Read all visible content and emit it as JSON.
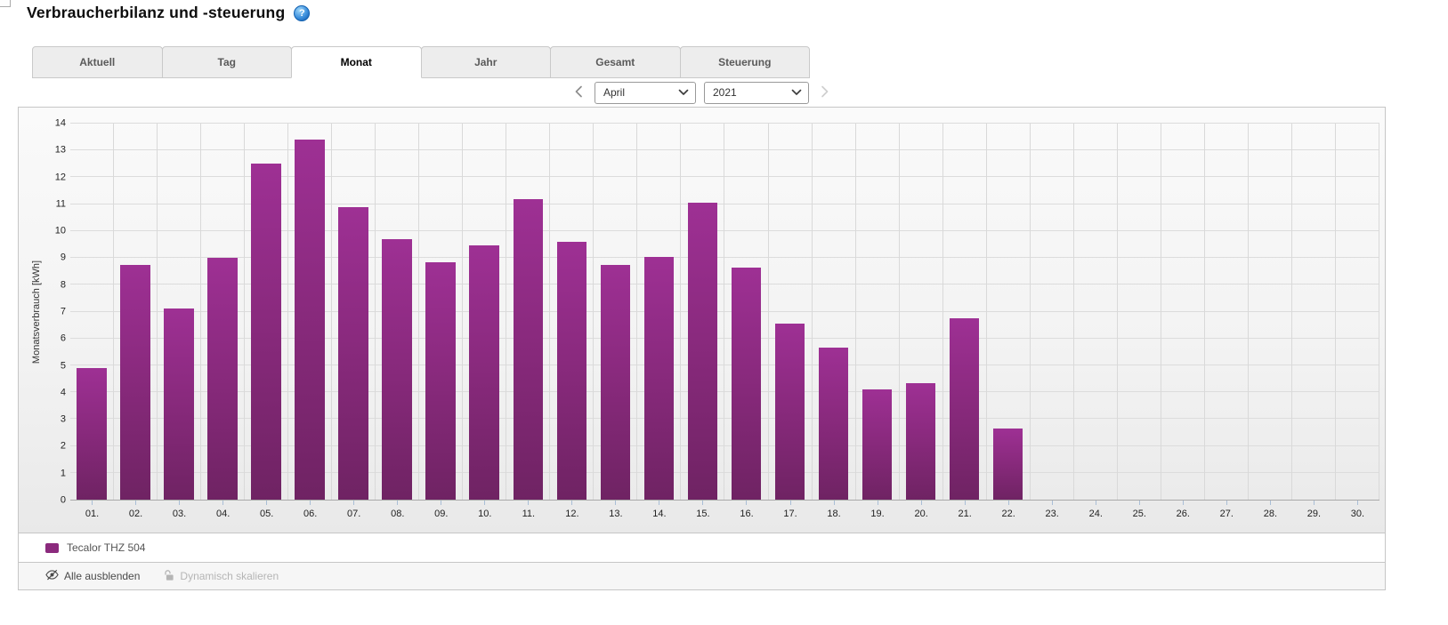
{
  "page": {
    "title": "Verbraucherbilanz und -steuerung"
  },
  "tabs": {
    "items": [
      {
        "label": "Aktuell",
        "active": false
      },
      {
        "label": "Tag",
        "active": false
      },
      {
        "label": "Monat",
        "active": true
      },
      {
        "label": "Jahr",
        "active": false
      },
      {
        "label": "Gesamt",
        "active": false
      },
      {
        "label": "Steuerung",
        "active": false
      }
    ]
  },
  "controls": {
    "month": {
      "value": "April",
      "options": [
        "April"
      ]
    },
    "year": {
      "value": "2021",
      "options": [
        "2021"
      ]
    },
    "prev_enabled": true,
    "next_enabled": false
  },
  "chart_data": {
    "type": "bar",
    "title": "",
    "xlabel": "",
    "ylabel": "Monatsverbrauch [kWh]",
    "ylim": [
      0,
      14
    ],
    "y_tick_step": 1,
    "grid": true,
    "legend_position": "bottom",
    "categories": [
      "01.",
      "02.",
      "03.",
      "04.",
      "05.",
      "06.",
      "07.",
      "08.",
      "09.",
      "10.",
      "11.",
      "12.",
      "13.",
      "14.",
      "15.",
      "16.",
      "17.",
      "18.",
      "19.",
      "20.",
      "21.",
      "22.",
      "23.",
      "24.",
      "25.",
      "26.",
      "27.",
      "28.",
      "29.",
      "30."
    ],
    "series": [
      {
        "name": "Tecalor THZ 504",
        "color": "#8b2a7d",
        "values": [
          4.9,
          8.75,
          7.1,
          9.0,
          12.5,
          13.4,
          10.9,
          9.7,
          8.85,
          9.45,
          11.2,
          9.6,
          8.75,
          9.05,
          11.05,
          8.65,
          6.55,
          5.65,
          4.1,
          4.35,
          6.75,
          2.65,
          0,
          0,
          0,
          0,
          0,
          0,
          0,
          0
        ]
      }
    ]
  },
  "legend": {
    "items": [
      {
        "label": "Tecalor THZ 504",
        "color": "#8b2a7d"
      }
    ]
  },
  "footer": {
    "hide_all": "Alle ausblenden",
    "dynamic_scale": "Dynamisch skalieren"
  },
  "colors": {
    "accent_purple": "#8b2a7d",
    "bar_gradient_top": "#9e3094",
    "bar_gradient_bottom": "#6f2363",
    "grid_line": "#dcdcdc",
    "tab_border": "#c9c9c9"
  }
}
